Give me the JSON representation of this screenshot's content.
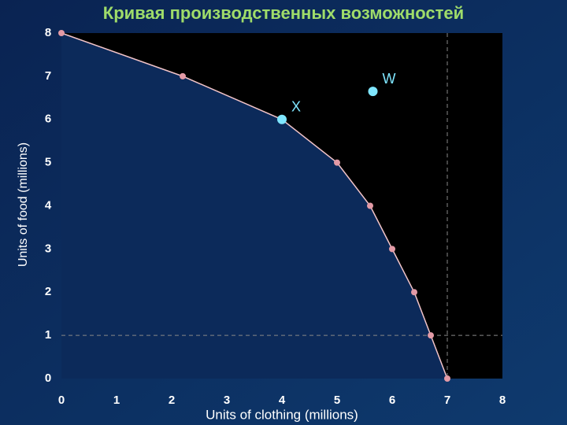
{
  "chart_data": {
    "type": "line",
    "title": "Кривая производственных возможностей",
    "xlabel": "Units of clothing (millions)",
    "ylabel": "Units of food (millions)",
    "series": [
      {
        "x": [
          0,
          2.2,
          4,
          5,
          5.6,
          6,
          6.4,
          6.7,
          7
        ],
        "values": [
          8,
          7,
          6,
          5,
          4,
          3,
          2,
          1,
          0
        ],
        "color": "#f2c4c8",
        "marker_color": "#e39aa6"
      }
    ],
    "points": [
      {
        "label": "X",
        "x": 4,
        "y": 6,
        "color": "#7fe6ff"
      },
      {
        "label": "W",
        "x": 5.65,
        "y": 6.65,
        "color": "#7fe6ff"
      }
    ],
    "reference_lines": {
      "x": 7,
      "y": 1
    },
    "xlim": [
      0,
      8
    ],
    "ylim": [
      0,
      8
    ],
    "xticks": [
      0,
      1,
      2,
      3,
      4,
      5,
      6,
      7,
      8
    ],
    "yticks": [
      0,
      1,
      2,
      3,
      4,
      5,
      6,
      7,
      8
    ],
    "grid": false
  }
}
